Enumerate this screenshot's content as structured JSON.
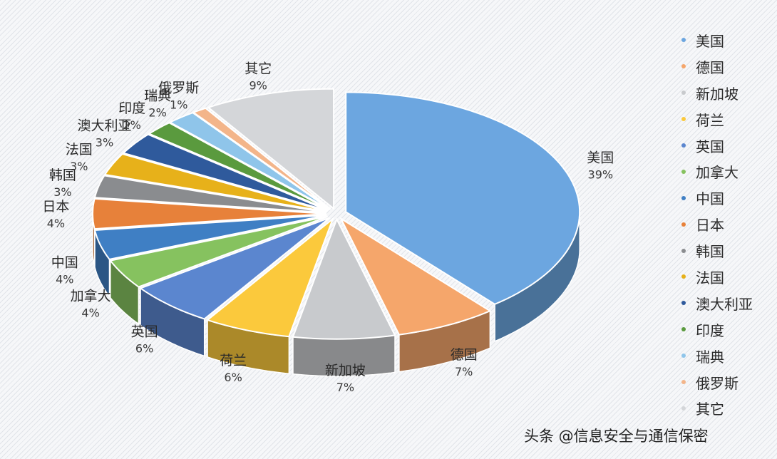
{
  "chart_data": {
    "type": "pie",
    "style": "3d-exploded",
    "categories": [
      "美国",
      "德国",
      "新加坡",
      "荷兰",
      "英国",
      "加拿大",
      "中国",
      "日本",
      "韩国",
      "法国",
      "澳大利亚",
      "印度",
      "瑞典",
      "俄罗斯",
      "其它"
    ],
    "values": [
      39,
      7,
      7,
      6,
      6,
      4,
      4,
      4,
      3,
      3,
      3,
      2,
      2,
      1,
      9
    ],
    "value_labels": [
      "39%",
      "7%",
      "7%",
      "6%",
      "6%",
      "4%",
      "4%",
      "4%",
      "3%",
      "3%",
      "3%",
      "2%",
      "2%",
      "1%",
      "9%"
    ],
    "colors": [
      "#6ca6e0",
      "#f5a66b",
      "#c8cacd",
      "#fbc93c",
      "#5b86cf",
      "#86c25f",
      "#3f7fc4",
      "#e7813a",
      "#8a8c8f",
      "#e7b11a",
      "#2f5a9c",
      "#5a9a3e",
      "#8fc5ea",
      "#f3b58a",
      "#d4d6d9"
    ],
    "legend_position": "right"
  },
  "legend": {
    "items": [
      {
        "label": "美国",
        "color": "#6ca6e0"
      },
      {
        "label": "德国",
        "color": "#f5a66b"
      },
      {
        "label": "新加坡",
        "color": "#c8cacd"
      },
      {
        "label": "荷兰",
        "color": "#fbc93c"
      },
      {
        "label": "英国",
        "color": "#5b86cf"
      },
      {
        "label": "加拿大",
        "color": "#86c25f"
      },
      {
        "label": "中国",
        "color": "#3f7fc4"
      },
      {
        "label": "日本",
        "color": "#e7813a"
      },
      {
        "label": "韩国",
        "color": "#8a8c8f"
      },
      {
        "label": "法国",
        "color": "#e7b11a"
      },
      {
        "label": "澳大利亚",
        "color": "#2f5a9c"
      },
      {
        "label": "印度",
        "color": "#5a9a3e"
      },
      {
        "label": "瑞典",
        "color": "#8fc5ea"
      },
      {
        "label": "俄罗斯",
        "color": "#f3b58a"
      },
      {
        "label": "其它",
        "color": "#d4d6d9"
      }
    ]
  },
  "watermark": "头条 @信息安全与通信保密"
}
